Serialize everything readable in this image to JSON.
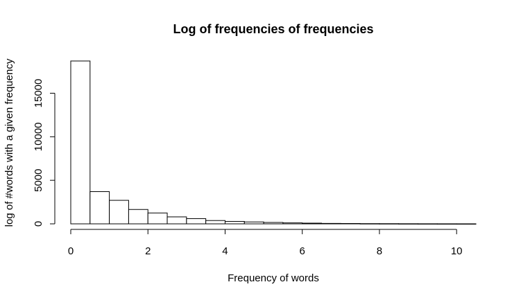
{
  "chart_data": {
    "type": "bar",
    "title": "Log of frequencies of frequencies",
    "xlabel": "Frequency of words",
    "ylabel": "log of #words with a given frequency",
    "xlim": [
      0,
      10.5
    ],
    "ylim": [
      0,
      18700
    ],
    "x_ticks": [
      0,
      2,
      4,
      6,
      8,
      10
    ],
    "y_ticks": [
      0,
      5000,
      10000,
      15000
    ],
    "bin_width": 0.5,
    "bins": [
      {
        "x0": 0.0,
        "x1": 0.5,
        "value": 18700
      },
      {
        "x0": 0.5,
        "x1": 1.0,
        "value": 3700
      },
      {
        "x0": 1.0,
        "x1": 1.5,
        "value": 2700
      },
      {
        "x0": 1.5,
        "x1": 2.0,
        "value": 1650
      },
      {
        "x0": 2.0,
        "x1": 2.5,
        "value": 1250
      },
      {
        "x0": 2.5,
        "x1": 3.0,
        "value": 800
      },
      {
        "x0": 3.0,
        "x1": 3.5,
        "value": 600
      },
      {
        "x0": 3.5,
        "x1": 4.0,
        "value": 380
      },
      {
        "x0": 4.0,
        "x1": 4.5,
        "value": 280
      },
      {
        "x0": 4.5,
        "x1": 5.0,
        "value": 220
      },
      {
        "x0": 5.0,
        "x1": 5.5,
        "value": 160
      },
      {
        "x0": 5.5,
        "x1": 6.0,
        "value": 110
      },
      {
        "x0": 6.0,
        "x1": 6.5,
        "value": 80
      },
      {
        "x0": 6.5,
        "x1": 7.0,
        "value": 50
      },
      {
        "x0": 7.0,
        "x1": 7.5,
        "value": 40
      },
      {
        "x0": 7.5,
        "x1": 8.0,
        "value": 25
      },
      {
        "x0": 8.0,
        "x1": 8.5,
        "value": 20
      },
      {
        "x0": 8.5,
        "x1": 9.0,
        "value": 12
      },
      {
        "x0": 9.0,
        "x1": 9.5,
        "value": 8
      },
      {
        "x0": 9.5,
        "x1": 10.0,
        "value": 5
      },
      {
        "x0": 10.0,
        "x1": 10.5,
        "value": 3
      }
    ]
  }
}
